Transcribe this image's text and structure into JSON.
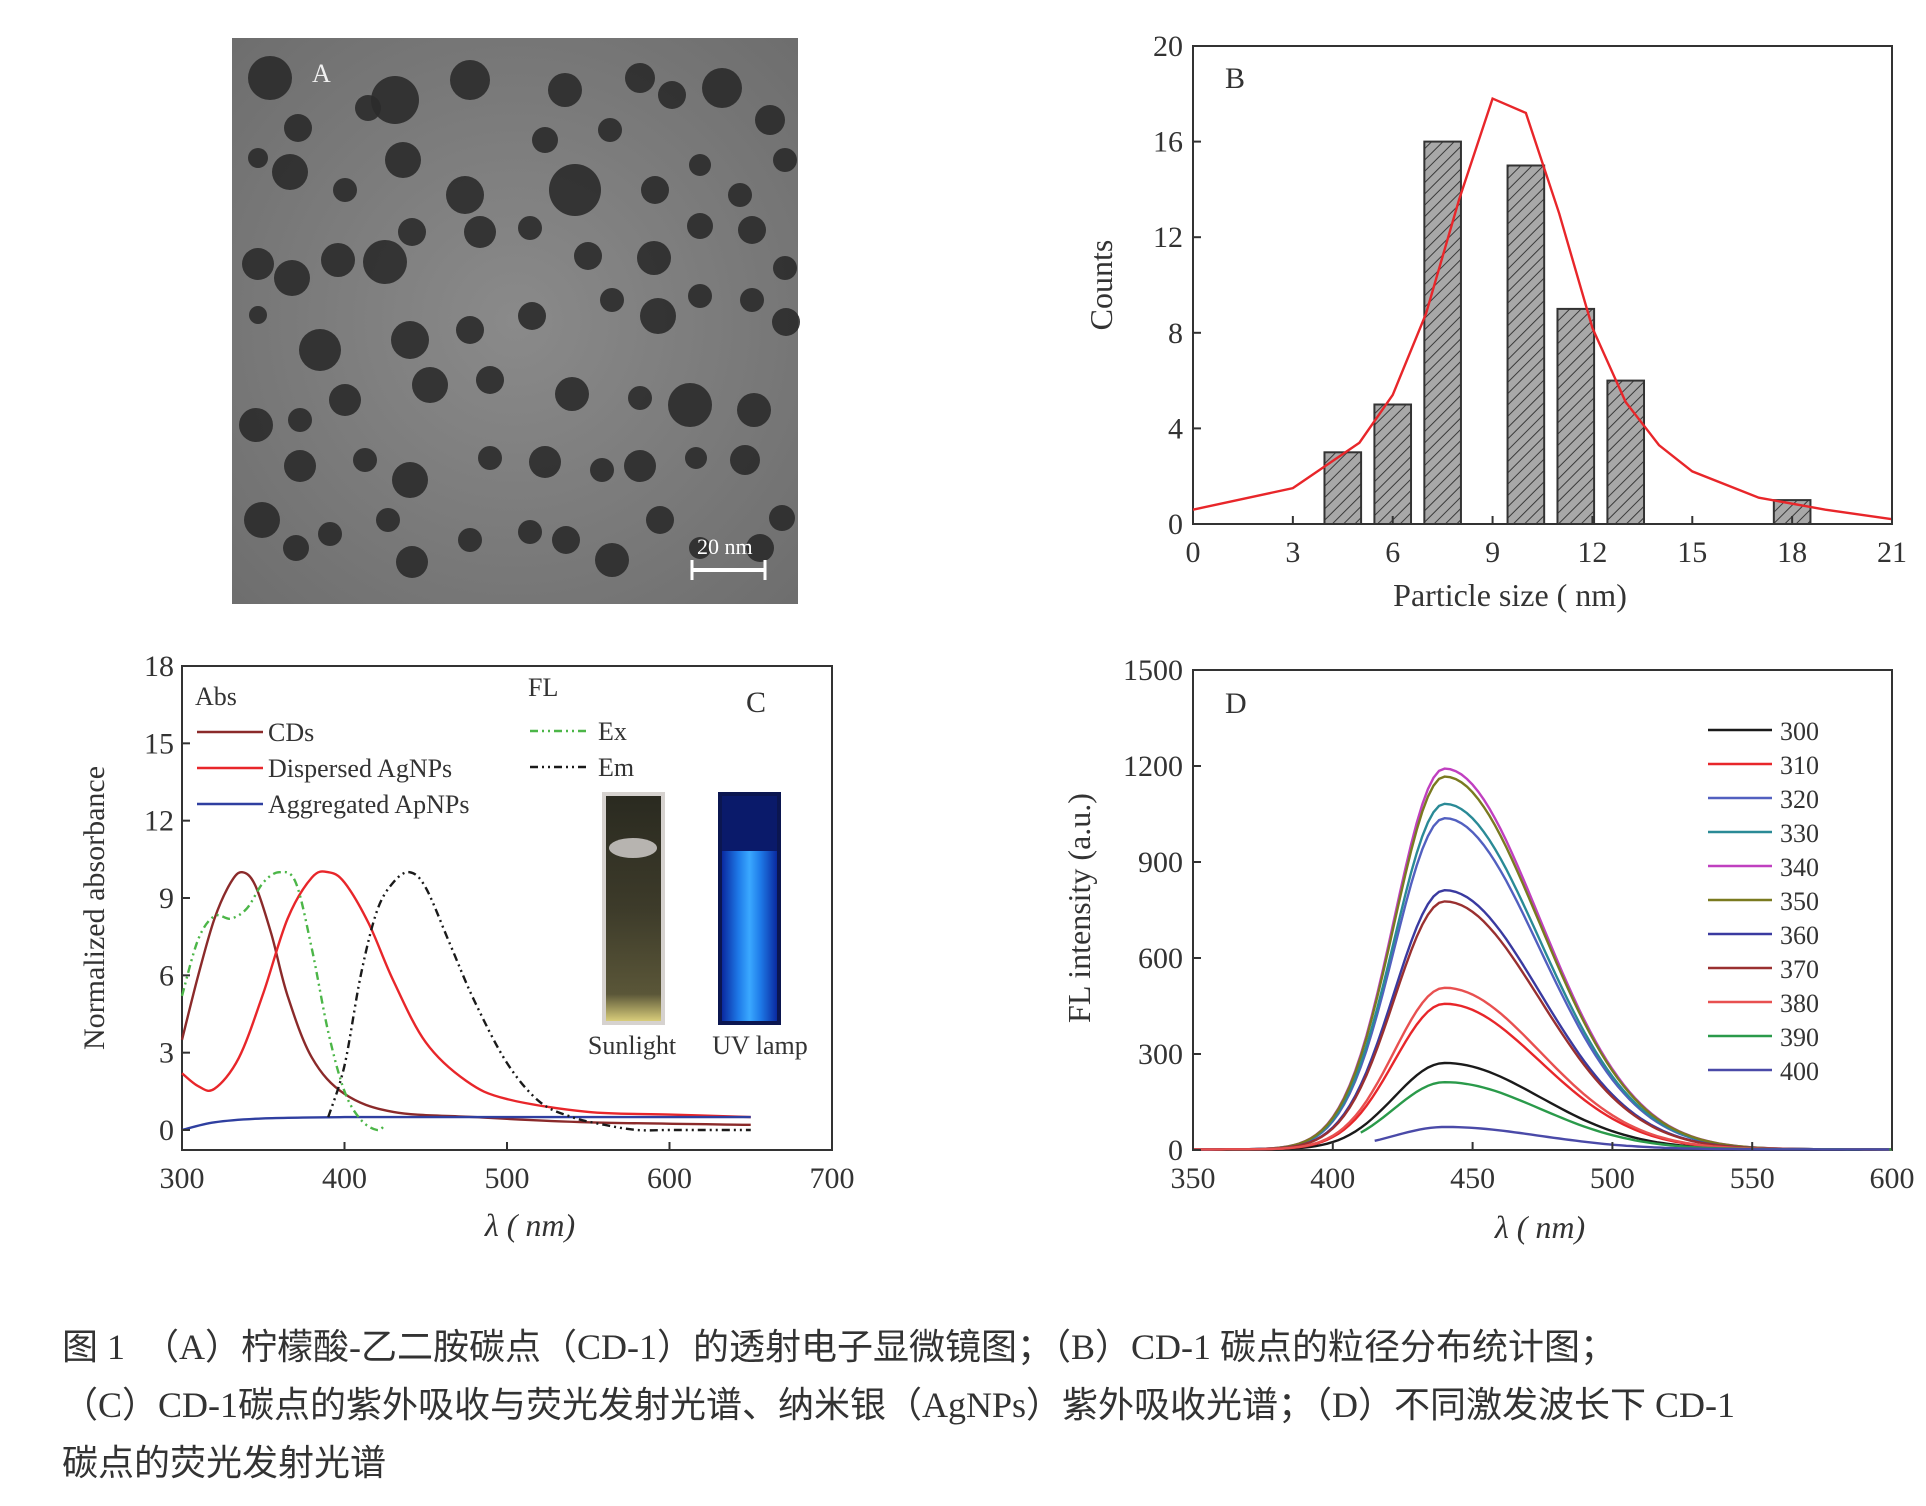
{
  "panels": {
    "A": {
      "label": "A",
      "scale_bar": "20 nm"
    },
    "B": {
      "label": "B"
    },
    "C": {
      "label": "C",
      "abs_heading": "Abs",
      "fl_heading": "FL",
      "photo_labels": [
        "Sunlight",
        "UV lamp"
      ]
    },
    "D": {
      "label": "D"
    }
  },
  "colors": {
    "cds": "#8b2a2a",
    "dispersed": "#e8262a",
    "aggregated": "#2f3fa0",
    "ex": "#4cb648",
    "em": "#1a1a1a",
    "fit": "#e8262a",
    "bar_fill": "#9a9a9a",
    "d300": "#1a1a1a",
    "d310": "#e8262a",
    "d320": "#5260c0",
    "d330": "#2a8a96",
    "d340": "#c040c0",
    "d350": "#7a7a20",
    "d360": "#3a3aa0",
    "d370": "#9a3030",
    "d380": "#e85050",
    "d390": "#2a9a4a",
    "d400": "#4a4aa8"
  },
  "chart_data": [
    {
      "type": "bar",
      "panel": "B",
      "xlabel": "Particle  size ( nm)",
      "ylabel": "Counts",
      "xlim": [
        0,
        21
      ],
      "ylim": [
        0,
        20
      ],
      "xticks": [
        "0",
        "3",
        "6",
        "9",
        "12",
        "15",
        "18",
        "21"
      ],
      "yticks": [
        "0",
        "4",
        "8",
        "12",
        "16",
        "20"
      ],
      "bar_width": 1.1,
      "categories": [
        4.5,
        6,
        7.5,
        10,
        11.5,
        13,
        18
      ],
      "values": [
        3,
        5,
        16,
        15,
        9,
        6,
        1
      ],
      "fit": {
        "type": "line",
        "x": [
          0,
          3,
          5,
          6,
          7,
          8,
          9,
          10,
          11,
          12,
          13,
          14,
          15,
          17,
          19,
          21
        ],
        "y": [
          0.6,
          1.5,
          3.4,
          5.4,
          8.8,
          13.6,
          17.8,
          17.2,
          13.0,
          8.2,
          5.1,
          3.3,
          2.2,
          1.1,
          0.6,
          0.2
        ]
      },
      "grid": false
    },
    {
      "type": "line",
      "panel": "C",
      "xlabel": "λ ( nm)",
      "ylabel": "Normalized  absorbance",
      "xlim": [
        300,
        700
      ],
      "ylim": [
        0,
        18
      ],
      "xticks": [
        "300",
        "400",
        "500",
        "600",
        "700"
      ],
      "yticks": [
        "0",
        "3",
        "6",
        "9",
        "12",
        "15",
        "18"
      ],
      "legend_abs": [
        "CDs",
        "Dispersed AgNPs",
        "Aggregated ApNPs"
      ],
      "legend_fl": [
        "Ex",
        "Em"
      ],
      "series": [
        {
          "name": "CDs",
          "x": [
            300,
            310,
            320,
            330,
            337,
            345,
            355,
            365,
            380,
            400,
            430,
            480,
            550,
            650
          ],
          "y": [
            3.5,
            6.0,
            8.2,
            9.6,
            10.0,
            9.5,
            7.6,
            5.2,
            2.8,
            1.4,
            0.7,
            0.5,
            0.3,
            0.2
          ]
        },
        {
          "name": "Dispersed AgNPs",
          "x": [
            300,
            310,
            320,
            335,
            350,
            365,
            380,
            390,
            400,
            415,
            430,
            450,
            475,
            500,
            550,
            600,
            650
          ],
          "y": [
            2.2,
            1.7,
            1.6,
            2.8,
            5.3,
            8.2,
            9.8,
            10.0,
            9.6,
            8.0,
            5.8,
            3.4,
            1.9,
            1.2,
            0.7,
            0.6,
            0.5
          ]
        },
        {
          "name": "Aggregated ApNPs",
          "x": [
            300,
            320,
            350,
            400,
            450,
            500,
            650
          ],
          "y": [
            0.0,
            0.3,
            0.45,
            0.5,
            0.5,
            0.5,
            0.5
          ]
        },
        {
          "name": "Ex",
          "x": [
            300,
            310,
            320,
            330,
            340,
            350,
            360,
            370,
            380,
            390,
            400,
            410,
            420,
            425
          ],
          "y": [
            5.2,
            7.4,
            8.3,
            8.2,
            8.6,
            9.6,
            10.0,
            9.6,
            7.0,
            3.8,
            1.5,
            0.4,
            0.0,
            0.2
          ]
        },
        {
          "name": "Em",
          "x": [
            390,
            400,
            410,
            420,
            430,
            440,
            450,
            465,
            480,
            500,
            520,
            540,
            560,
            580,
            600,
            620,
            650
          ],
          "y": [
            0.5,
            2.5,
            6.0,
            8.5,
            9.6,
            10.0,
            9.4,
            7.2,
            5.0,
            2.6,
            1.1,
            0.5,
            0.2,
            0.0,
            0.0,
            0.0,
            0.0
          ]
        }
      ],
      "grid": false
    },
    {
      "type": "line",
      "panel": "D",
      "xlabel": "λ ( nm)",
      "ylabel": "FL intensity (a.u.)",
      "xlim": [
        350,
        600
      ],
      "ylim": [
        0,
        1500
      ],
      "xticks": [
        "350",
        "400",
        "450",
        "500",
        "550",
        "600"
      ],
      "yticks": [
        "0",
        "300",
        "600",
        "900",
        "1200",
        "1500"
      ],
      "legend_title": "",
      "series": [
        {
          "name": "300",
          "peak": 270
        },
        {
          "name": "310",
          "peak": 455
        },
        {
          "name": "320",
          "peak": 1035
        },
        {
          "name": "330",
          "peak": 1080
        },
        {
          "name": "340",
          "peak": 1190
        },
        {
          "name": "350",
          "peak": 1165
        },
        {
          "name": "360",
          "peak": 810
        },
        {
          "name": "370",
          "peak": 775
        },
        {
          "name": "380",
          "peak": 505
        },
        {
          "name": "390",
          "peak": 210
        },
        {
          "name": "400",
          "peak": 70
        }
      ],
      "grid": false
    }
  ],
  "caption": {
    "line1": "图 1　（A）柠檬酸-乙二胺碳点（CD-1）的透射电子显微镜图；（B）CD-1 碳点的粒径分布统计图；",
    "line2": "（C）CD-1碳点的紫外吸收与荧光发射光谱、纳米银（AgNPs）紫外吸收光谱；（D）不同激发波长下 CD-1",
    "line3": "碳点的荧光发射光谱"
  }
}
